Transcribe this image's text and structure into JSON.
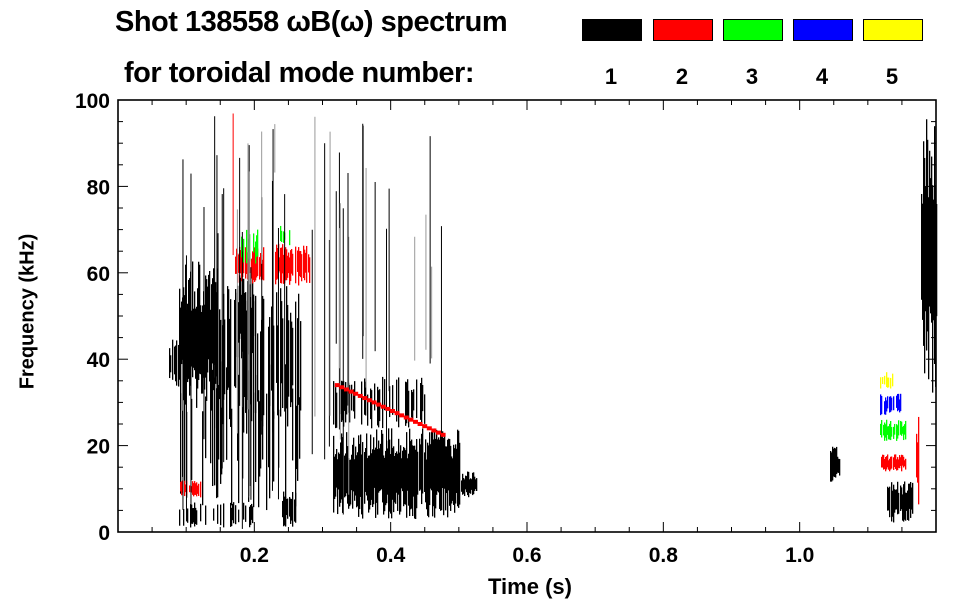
{
  "chart_data": {
    "type": "heatmap",
    "title": "Shot 138558 ωB(ω) spectrum",
    "subtitle": "for toroidal mode number:",
    "xlabel": "Time (s)",
    "ylabel": "Frequency (kHz)",
    "xlim": [
      0,
      1.2
    ],
    "ylim": [
      0,
      100
    ],
    "xticks": [
      "0.2",
      "0.4",
      "0.6",
      "0.8",
      "1.0"
    ],
    "xtick_values": [
      0.2,
      0.4,
      0.6,
      0.8,
      1.0
    ],
    "yticks": [
      "0",
      "20",
      "40",
      "60",
      "80",
      "100"
    ],
    "ytick_values": [
      0,
      20,
      40,
      60,
      80,
      100
    ],
    "legend": [
      {
        "mode": "1",
        "color": "#000000"
      },
      {
        "mode": "2",
        "color": "#ff0000"
      },
      {
        "mode": "3",
        "color": "#00ff00"
      },
      {
        "mode": "4",
        "color": "#0000ff"
      },
      {
        "mode": "5",
        "color": "#ffff00"
      }
    ],
    "regions": [
      {
        "mode": 1,
        "t": [
          0.074,
          0.09
        ],
        "f": [
          33,
          45
        ],
        "density": 0.9
      },
      {
        "mode": 1,
        "t": [
          0.09,
          0.145
        ],
        "f": [
          28,
          63
        ],
        "density": 0.95
      },
      {
        "mode": 1,
        "t": [
          0.145,
          0.27
        ],
        "f": [
          22,
          58
        ],
        "density": 0.6
      },
      {
        "mode": 1,
        "t": [
          0.17,
          0.2
        ],
        "f": [
          40,
          60
        ],
        "density": 0.8
      },
      {
        "mode": 1,
        "t": [
          0.09,
          0.27
        ],
        "f": [
          5,
          40
        ],
        "density": 0.3
      },
      {
        "mode": 1,
        "t": [
          0.09,
          0.2
        ],
        "f": [
          1,
          7
        ],
        "density": 0.4
      },
      {
        "mode": 1,
        "t": [
          0.24,
          0.26
        ],
        "f": [
          1,
          10
        ],
        "density": 0.6
      },
      {
        "mode": 1,
        "t": [
          0.315,
          0.5
        ],
        "f": [
          3,
          24
        ],
        "density": 0.97
      },
      {
        "mode": 1,
        "t": [
          0.315,
          0.45
        ],
        "f": [
          24,
          36
        ],
        "density": 0.45
      },
      {
        "mode": 1,
        "t": [
          0.5,
          0.525
        ],
        "f": [
          8,
          14
        ],
        "density": 0.9
      },
      {
        "mode": 1,
        "t": [
          1.045,
          1.058
        ],
        "f": [
          11,
          20
        ],
        "density": 1.0
      },
      {
        "mode": 1,
        "t": [
          1.128,
          1.165
        ],
        "f": [
          2,
          12
        ],
        "density": 0.95
      },
      {
        "mode": 1,
        "t": [
          1.178,
          1.2
        ],
        "f": [
          30,
          100
        ],
        "density": 0.95
      },
      {
        "mode": 2,
        "t": [
          0.172,
          0.212
        ],
        "f": [
          57,
          66
        ],
        "density": 0.9
      },
      {
        "mode": 2,
        "t": [
          0.231,
          0.28
        ],
        "f": [
          57,
          67
        ],
        "density": 0.9
      },
      {
        "mode": 2,
        "t": [
          0.09,
          0.12
        ],
        "f": [
          8,
          12
        ],
        "density": 0.5
      },
      {
        "mode": 2,
        "t": [
          1.118,
          1.154
        ],
        "f": [
          14,
          18
        ],
        "density": 0.85
      },
      {
        "mode": 2,
        "t": [
          1.17,
          1.174
        ],
        "f": [
          5,
          28
        ],
        "density": 1.0
      },
      {
        "mode": 3,
        "t": [
          0.176,
          0.21
        ],
        "f": [
          62,
          70
        ],
        "density": 0.35
      },
      {
        "mode": 3,
        "t": [
          0.238,
          0.253
        ],
        "f": [
          66,
          71
        ],
        "density": 0.6
      },
      {
        "mode": 3,
        "t": [
          1.118,
          1.154
        ],
        "f": [
          21,
          26
        ],
        "density": 0.8
      },
      {
        "mode": 4,
        "t": [
          1.118,
          1.15
        ],
        "f": [
          27,
          32
        ],
        "density": 0.55
      },
      {
        "mode": 5,
        "t": [
          1.118,
          1.14
        ],
        "f": [
          33,
          37
        ],
        "density": 0.4
      }
    ],
    "streaks": [
      {
        "mode": 1,
        "t": [
          0.09,
          0.34
        ],
        "f": [
          0,
          100
        ],
        "count": 30
      },
      {
        "mode": 1,
        "t": [
          0.31,
          0.48
        ],
        "f": [
          20,
          100
        ],
        "count": 14
      },
      {
        "mode": 2,
        "t": [
          0.09,
          0.25
        ],
        "f": [
          60,
          100
        ],
        "count": 6
      }
    ],
    "chirps": [
      {
        "mode": 2,
        "t": [
          0.318,
          0.48
        ],
        "f": [
          34,
          22
        ]
      }
    ]
  }
}
